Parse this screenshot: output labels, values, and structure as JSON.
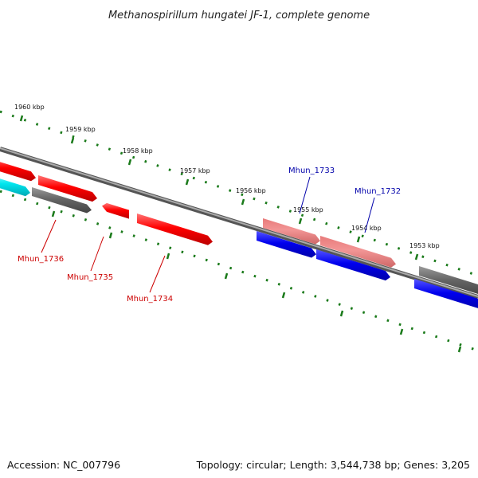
{
  "title": "Methanospirillum hungatei JF-1, complete genome",
  "footer": {
    "accession": "Accession: NC_007796",
    "summary": "Topology: circular; Length: 3,544,738 bp; Genes: 3,205"
  },
  "colors": {
    "forward_gene": "#ff0000",
    "forward_gene_light": "#f08a8a",
    "reverse_gene": "#0000ee",
    "cyan_gene": "#00e5ee",
    "grey_gene": "#666666",
    "tick": "#1a7a1a",
    "backbone": "#777777",
    "label_red": "#cc0000",
    "label_blue": "#0000aa"
  },
  "ticks": [
    {
      "label": "1960 kbp"
    },
    {
      "label": "1959 kbp"
    },
    {
      "label": "1958 kbp"
    },
    {
      "label": "1957 kbp"
    },
    {
      "label": "1956 kbp"
    },
    {
      "label": "1955 kbp"
    },
    {
      "label": "1954 kbp"
    },
    {
      "label": "1953 kbp"
    }
  ],
  "gene_labels": [
    {
      "text": "Mhun_1733",
      "strand": "reverse"
    },
    {
      "text": "Mhun_1732",
      "strand": "reverse"
    },
    {
      "text": "Mhun_1736",
      "strand": "forward"
    },
    {
      "text": "Mhun_1735",
      "strand": "forward"
    },
    {
      "text": "Mhun_1734",
      "strand": "forward"
    }
  ]
}
